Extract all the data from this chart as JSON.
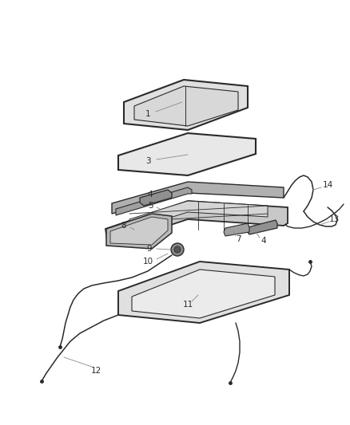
{
  "bg_color": "#ffffff",
  "line_color": "#2a2a2a",
  "label_color": "#2a2a2a",
  "callout_color": "#888888",
  "fig_width": 4.38,
  "fig_height": 5.33,
  "dpi": 100
}
